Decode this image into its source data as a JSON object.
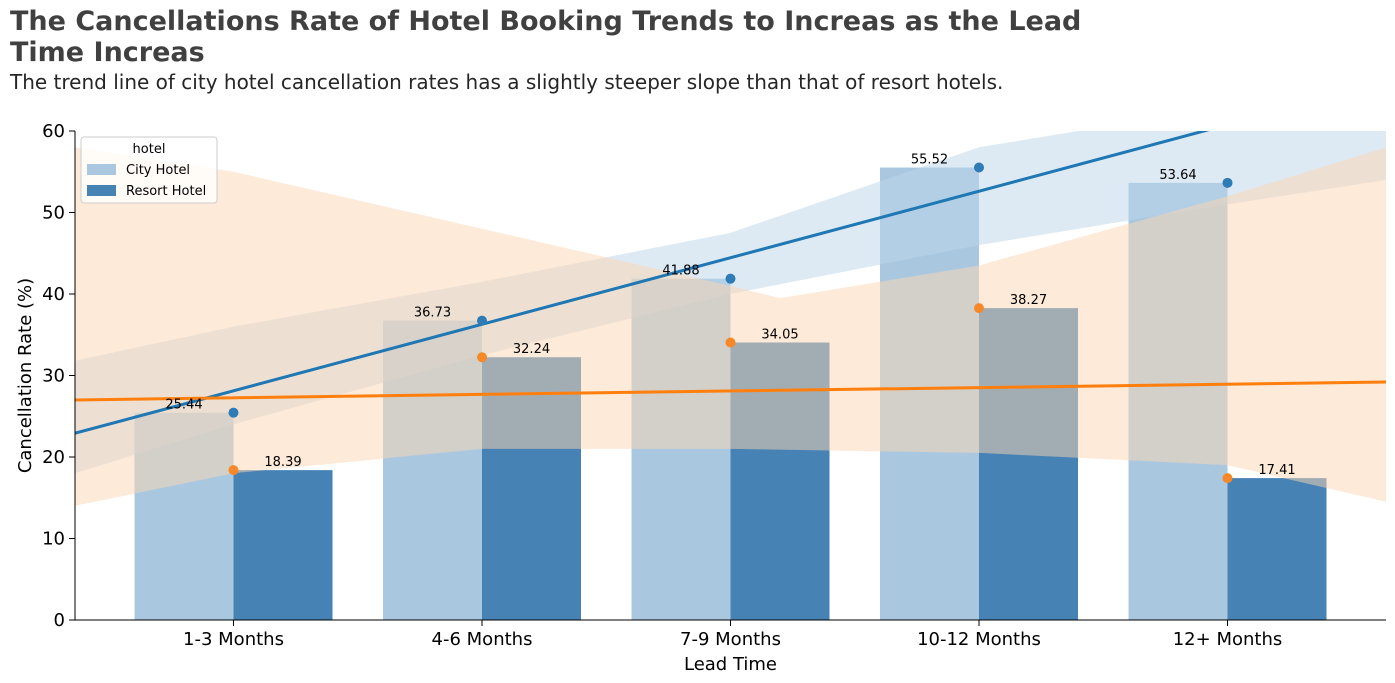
{
  "chart_data": {
    "type": "bar",
    "title": "The Cancellations Rate of Hotel Booking Trends to Increas as the Lead Time Increas",
    "subtitle": "The trend line of city hotel cancellation rates has a slightly steeper slope than that of resort hotels.",
    "xlabel": "Lead Time",
    "ylabel": "Cancellation Rate (%)",
    "categories": [
      "1-3 Months",
      "4-6 Months",
      "7-9 Months",
      "10-12 Months",
      "12+ Months"
    ],
    "ylim": [
      0,
      60
    ],
    "yticks": [
      "0",
      "10",
      "20",
      "30",
      "40",
      "50",
      "60"
    ],
    "legend": {
      "title": "hotel",
      "position": "top-left"
    },
    "series": [
      {
        "name": "City Hotel",
        "values": [
          25.44,
          36.73,
          41.88,
          55.52,
          53.64
        ],
        "labels": [
          "25.44",
          "36.73",
          "41.88",
          "55.52",
          "53.64"
        ],
        "color": "#a9c8e0"
      },
      {
        "name": "Resort Hotel",
        "values": [
          18.39,
          32.24,
          34.05,
          38.27,
          17.41
        ],
        "labels": [
          "18.39",
          "32.24",
          "34.05",
          "38.27",
          "17.41"
        ],
        "color": "#4682b4"
      }
    ],
    "trend_lines": [
      {
        "series": "City Hotel",
        "color": "#1f77b4",
        "band_color": "#bcd5ea",
        "line": [
          [
            -0.64,
            22.9
          ],
          [
            4.64,
            66.0
          ]
        ],
        "band_upper": [
          [
            -0.64,
            31.8
          ],
          [
            0,
            36.0
          ],
          [
            1,
            41.5
          ],
          [
            2,
            47.5
          ],
          [
            3,
            58.0
          ],
          [
            4,
            63.0
          ],
          [
            4.64,
            64.0
          ]
        ],
        "band_lower": [
          [
            -0.64,
            18.0
          ],
          [
            0,
            24.0
          ],
          [
            1,
            32.5
          ],
          [
            2,
            40.0
          ],
          [
            3,
            46.0
          ],
          [
            4,
            51.0
          ],
          [
            4.64,
            54.0
          ]
        ]
      },
      {
        "series": "Resort Hotel",
        "color": "#ff7f0e",
        "band_color": "#fdd5b1",
        "line": [
          [
            -0.64,
            27.0
          ],
          [
            4.64,
            29.2
          ]
        ],
        "band_upper": [
          [
            -0.64,
            58.0
          ],
          [
            0,
            55.0
          ],
          [
            1,
            48.0
          ],
          [
            2,
            41.0
          ],
          [
            2.2,
            39.5
          ],
          [
            3,
            43.5
          ],
          [
            4,
            52.0
          ],
          [
            4.64,
            58.0
          ]
        ],
        "band_lower": [
          [
            -0.64,
            14.0
          ],
          [
            0,
            18.0
          ],
          [
            1,
            21.0
          ],
          [
            2,
            21.0
          ],
          [
            3,
            20.5
          ],
          [
            4,
            19.0
          ],
          [
            4.64,
            14.5
          ]
        ]
      }
    ]
  }
}
